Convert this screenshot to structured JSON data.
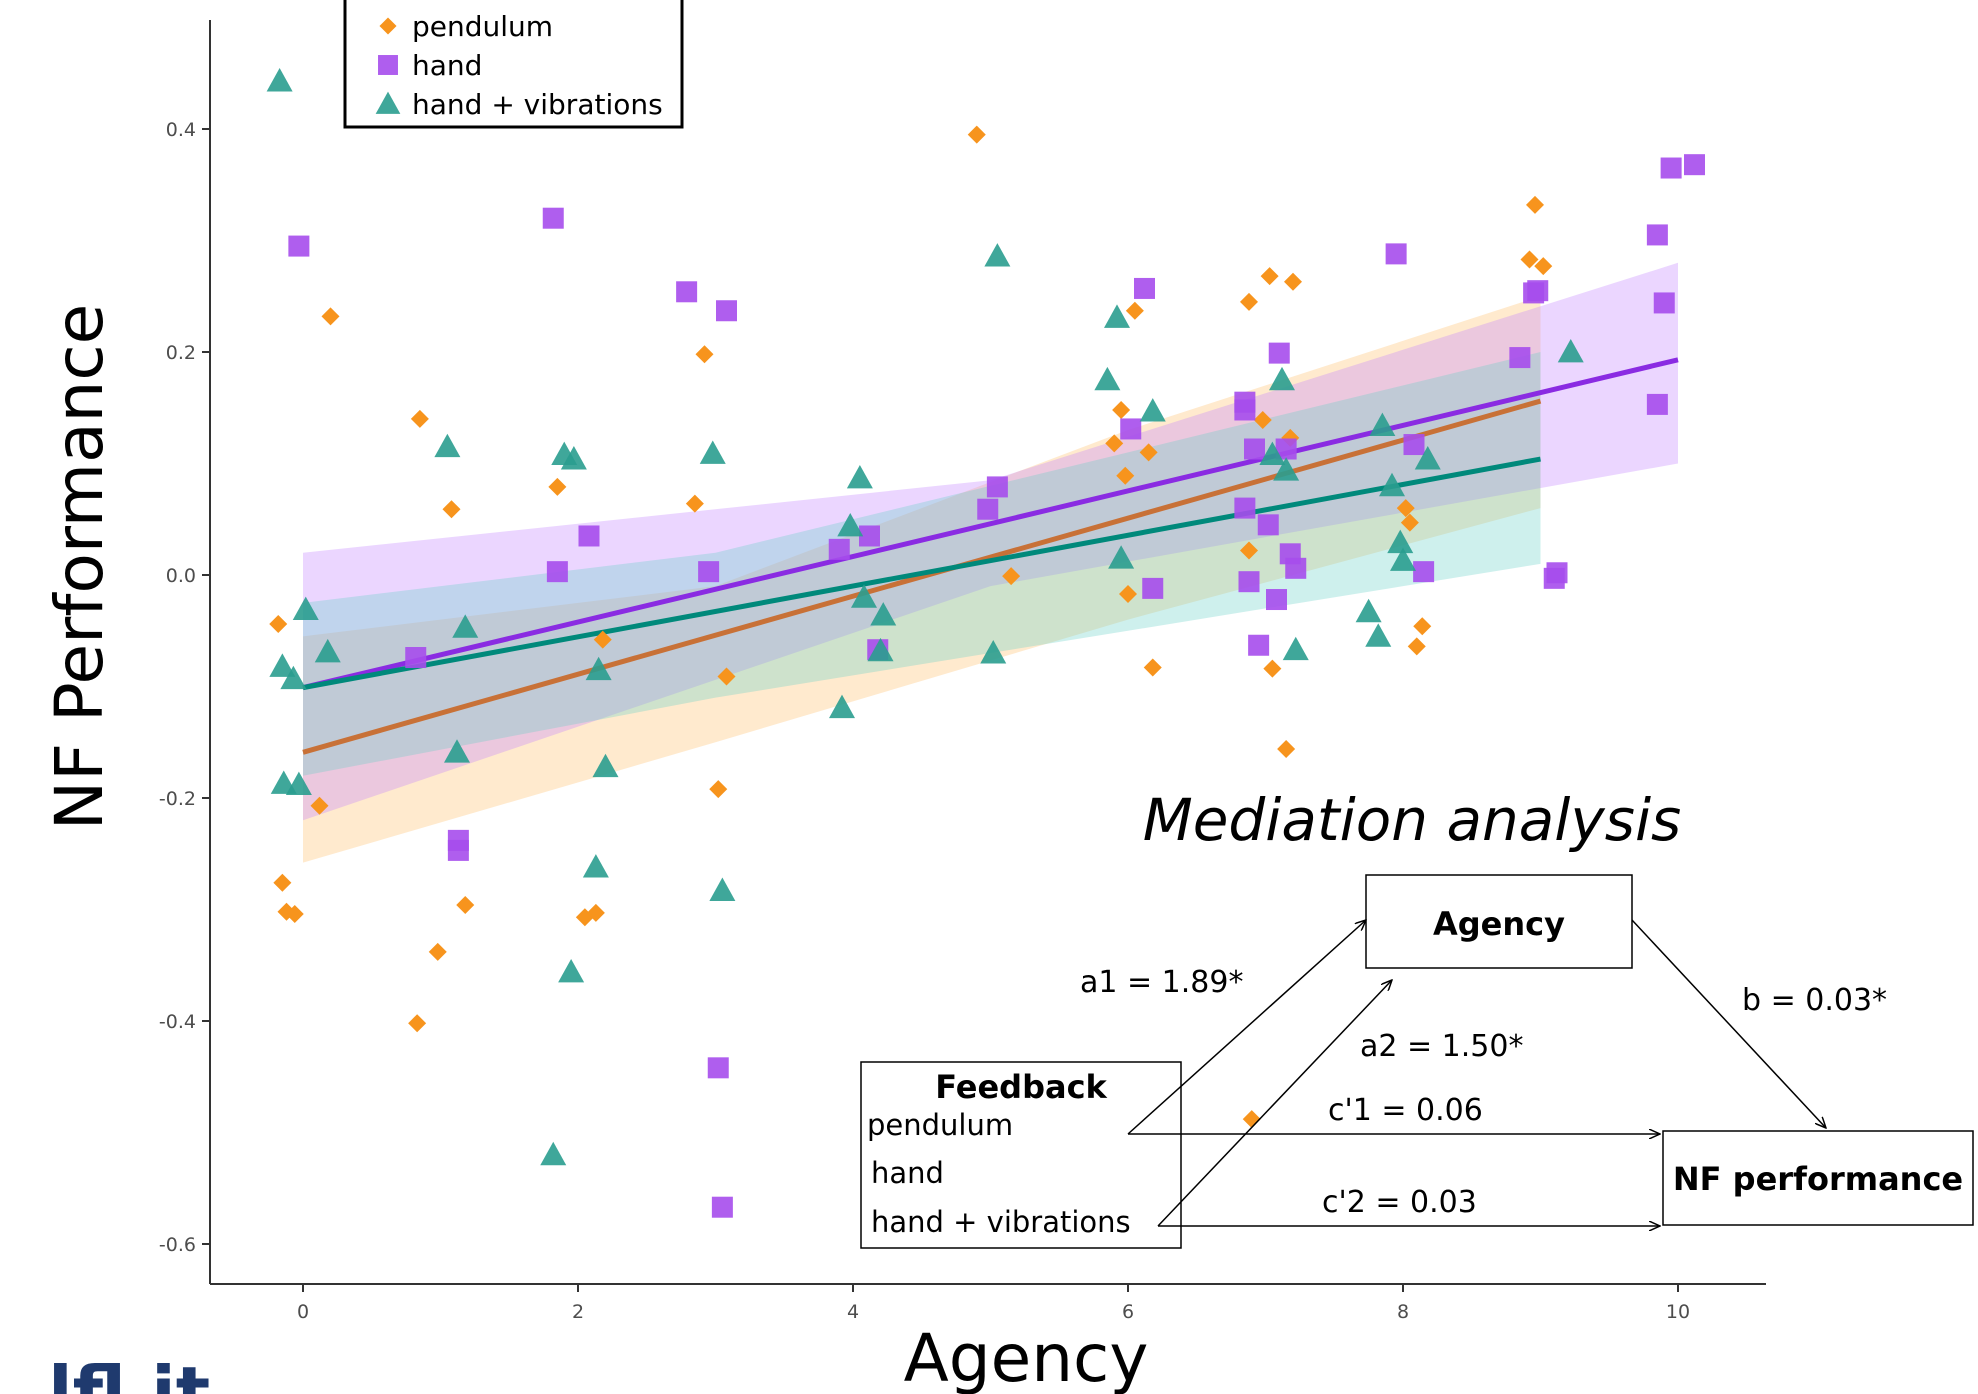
{
  "chart_data": {
    "type": "scatter",
    "xlabel": "Agency",
    "ylabel": "NF Performance",
    "xlim": [
      -0.7,
      10.6
    ],
    "ylim": [
      -0.635,
      0.495
    ],
    "x_ticks": [
      "0",
      "2",
      "4",
      "6",
      "8",
      "10"
    ],
    "y_ticks": [
      "0.4",
      "0.2",
      "0.0",
      "-0.2",
      "-0.4",
      "-0.6"
    ],
    "grid": false,
    "legend_position": "top-left",
    "series": [
      {
        "name": "pendulum",
        "marker": "diamond",
        "color": "#f7941d",
        "line_color": "#c87137",
        "band_color": "#ffbf66",
        "points": [
          [
            -0.18,
            -0.044
          ],
          [
            -0.15,
            -0.276
          ],
          [
            -0.12,
            -0.302
          ],
          [
            -0.06,
            -0.304
          ],
          [
            0.12,
            -0.207
          ],
          [
            0.2,
            0.232
          ],
          [
            0.85,
            0.14
          ],
          [
            0.83,
            -0.402
          ],
          [
            0.98,
            -0.338
          ],
          [
            1.08,
            0.059
          ],
          [
            1.18,
            -0.296
          ],
          [
            1.85,
            0.079
          ],
          [
            2.05,
            -0.307
          ],
          [
            2.13,
            -0.303
          ],
          [
            2.18,
            -0.058
          ],
          [
            2.85,
            0.064
          ],
          [
            2.92,
            0.198
          ],
          [
            3.02,
            -0.192
          ],
          [
            3.08,
            -0.091
          ],
          [
            4.9,
            0.395
          ],
          [
            5.15,
            -0.001
          ],
          [
            5.9,
            0.118
          ],
          [
            5.95,
            0.148
          ],
          [
            5.98,
            0.089
          ],
          [
            6.0,
            -0.017
          ],
          [
            6.05,
            0.237
          ],
          [
            6.15,
            0.11
          ],
          [
            6.18,
            -0.083
          ],
          [
            6.88,
            0.245
          ],
          [
            6.88,
            0.022
          ],
          [
            6.98,
            0.139
          ],
          [
            7.03,
            0.268
          ],
          [
            7.05,
            -0.084
          ],
          [
            7.2,
            0.263
          ],
          [
            7.15,
            -0.156
          ],
          [
            7.18,
            0.123
          ],
          [
            6.9,
            -0.488
          ],
          [
            8.02,
            0.06
          ],
          [
            8.05,
            0.047
          ],
          [
            8.1,
            -0.064
          ],
          [
            8.14,
            -0.046
          ],
          [
            8.92,
            0.283
          ],
          [
            8.96,
            0.332
          ],
          [
            9.02,
            0.277
          ]
        ],
        "fit": {
          "x": [
            0,
            9
          ],
          "y": [
            -0.159,
            0.156
          ]
        },
        "ci": {
          "x": [
            0,
            3,
            6,
            9
          ],
          "upper": [
            -0.055,
            -0.01,
            0.13,
            0.25
          ],
          "lower": [
            -0.258,
            -0.15,
            -0.04,
            0.06
          ]
        }
      },
      {
        "name": "hand",
        "marker": "square",
        "color": "#a64dec",
        "line_color": "#8a2be2",
        "band_color": "#c080ff",
        "points": [
          [
            -0.03,
            0.295
          ],
          [
            0.82,
            -0.074
          ],
          [
            1.13,
            -0.238
          ],
          [
            1.13,
            -0.247
          ],
          [
            1.82,
            0.32
          ],
          [
            1.85,
            0.003
          ],
          [
            2.08,
            0.035
          ],
          [
            2.79,
            0.254
          ],
          [
            2.95,
            0.003
          ],
          [
            3.02,
            -0.442
          ],
          [
            3.05,
            -0.567
          ],
          [
            3.08,
            0.237
          ],
          [
            3.9,
            0.023
          ],
          [
            4.12,
            0.035
          ],
          [
            4.18,
            -0.067
          ],
          [
            4.98,
            0.059
          ],
          [
            5.05,
            0.079
          ],
          [
            6.02,
            0.131
          ],
          [
            6.12,
            0.257
          ],
          [
            6.18,
            -0.012
          ],
          [
            6.85,
            0.06
          ],
          [
            6.85,
            0.148
          ],
          [
            6.85,
            0.155
          ],
          [
            6.88,
            -0.006
          ],
          [
            6.92,
            0.113
          ],
          [
            6.95,
            -0.063
          ],
          [
            7.02,
            0.045
          ],
          [
            7.08,
            -0.022
          ],
          [
            7.1,
            0.199
          ],
          [
            7.15,
            0.113
          ],
          [
            7.18,
            0.019
          ],
          [
            7.22,
            0.006
          ],
          [
            7.95,
            0.288
          ],
          [
            8.08,
            0.117
          ],
          [
            8.15,
            0.003
          ],
          [
            8.85,
            0.195
          ],
          [
            8.95,
            0.253
          ],
          [
            8.98,
            0.255
          ],
          [
            9.1,
            -0.003
          ],
          [
            9.12,
            0.002
          ],
          [
            9.85,
            0.153
          ],
          [
            9.85,
            0.305
          ],
          [
            9.9,
            0.244
          ],
          [
            9.95,
            0.365
          ],
          [
            10.12,
            0.368
          ]
        ],
        "fit": {
          "x": [
            0,
            10
          ],
          "y": [
            -0.101,
            0.193
          ]
        },
        "ci": {
          "x": [
            0,
            5,
            10
          ],
          "upper": [
            0.02,
            0.085,
            0.28
          ],
          "lower": [
            -0.22,
            -0.01,
            0.1
          ]
        }
      },
      {
        "name": "hand + vibrations",
        "marker": "triangle",
        "color": "#2a9d8f",
        "line_color": "#00897b",
        "band_color": "#66cfc7",
        "points": [
          [
            -0.17,
            0.443
          ],
          [
            -0.15,
            -0.082
          ],
          [
            -0.14,
            -0.187
          ],
          [
            -0.07,
            -0.093
          ],
          [
            -0.03,
            -0.188
          ],
          [
            0.02,
            -0.031
          ],
          [
            0.18,
            -0.069
          ],
          [
            1.05,
            0.115
          ],
          [
            1.12,
            -0.159
          ],
          [
            1.18,
            -0.047
          ],
          [
            1.82,
            -0.52
          ],
          [
            1.9,
            0.108
          ],
          [
            1.95,
            -0.356
          ],
          [
            1.97,
            0.104
          ],
          [
            2.13,
            -0.262
          ],
          [
            2.15,
            -0.085
          ],
          [
            2.2,
            -0.172
          ],
          [
            2.98,
            0.109
          ],
          [
            3.05,
            -0.283
          ],
          [
            3.92,
            -0.119
          ],
          [
            3.98,
            0.044
          ],
          [
            4.05,
            0.087
          ],
          [
            4.08,
            -0.02
          ],
          [
            4.2,
            -0.068
          ],
          [
            4.22,
            -0.036
          ],
          [
            5.02,
            -0.07
          ],
          [
            5.05,
            0.286
          ],
          [
            5.85,
            0.175
          ],
          [
            5.92,
            0.231
          ],
          [
            5.95,
            0.015
          ],
          [
            6.18,
            0.147
          ],
          [
            7.05,
            0.108
          ],
          [
            7.12,
            0.175
          ],
          [
            7.15,
            0.094
          ],
          [
            7.22,
            -0.067
          ],
          [
            7.75,
            -0.033
          ],
          [
            7.82,
            -0.055
          ],
          [
            7.85,
            0.134
          ],
          [
            7.92,
            0.08
          ],
          [
            7.98,
            0.029
          ],
          [
            8.0,
            0.013
          ],
          [
            8.18,
            0.104
          ],
          [
            9.22,
            0.2
          ]
        ],
        "fit": {
          "x": [
            0,
            9
          ],
          "y": [
            -0.101,
            0.104
          ]
        },
        "ci": {
          "x": [
            0,
            3,
            6,
            9
          ],
          "upper": [
            -0.025,
            0.02,
            0.11,
            0.2
          ],
          "lower": [
            -0.18,
            -0.11,
            -0.05,
            0.01
          ]
        }
      }
    ]
  },
  "mediation": {
    "title": "Mediation analysis",
    "agency_box": "Agency",
    "feedback_title": "Feedback",
    "feedback_items": [
      "pendulum",
      "hand",
      "hand + vibrations"
    ],
    "outcome_box": "NF performance",
    "a1": "a1 = 1.89*",
    "a2": "a2 = 1.50*",
    "b": "b = 0.03*",
    "c1": "c'1 = 0.06",
    "c2": "c'2 = 0.03"
  },
  "footer": {
    "logo_fragment": "lfl it"
  }
}
